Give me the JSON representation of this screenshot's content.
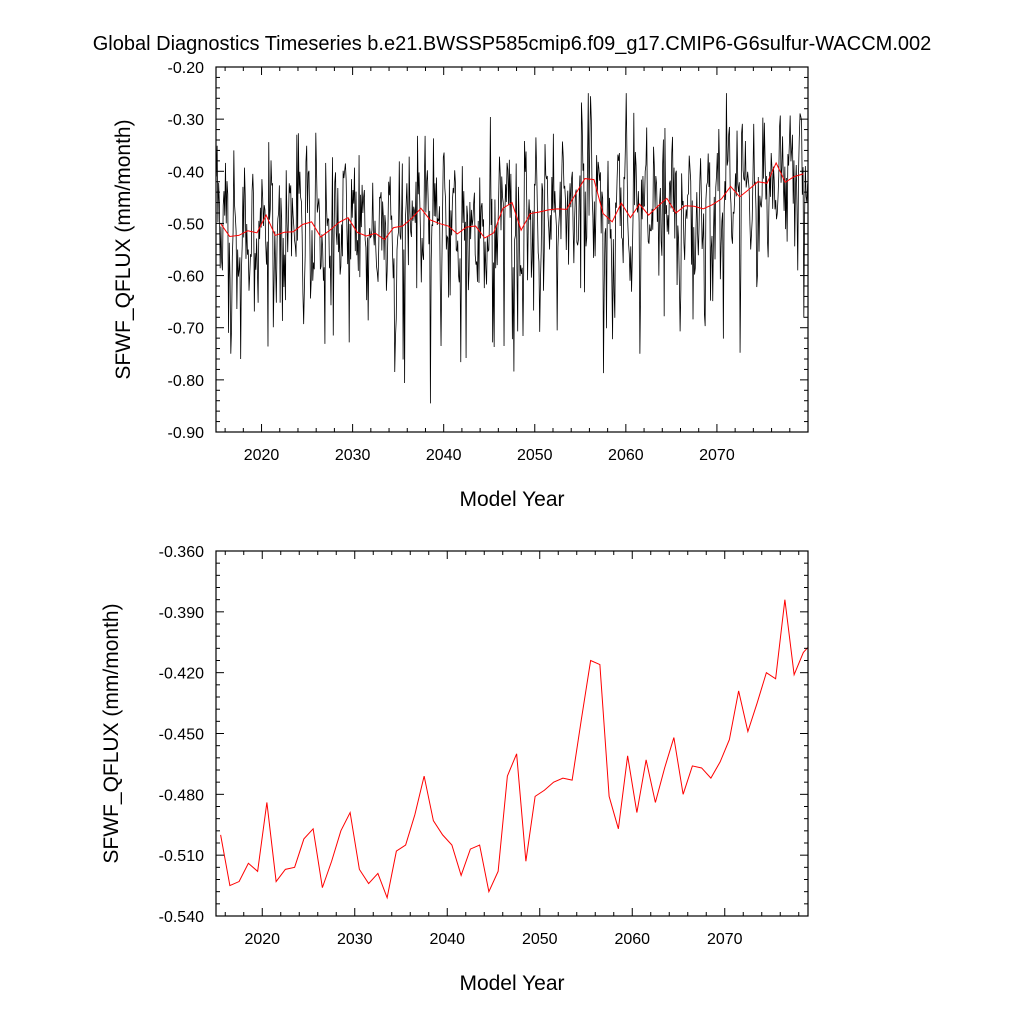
{
  "title": "Global Diagnostics Timeseries b.e21.BWSSP585cmip6.f09_g17.CMIP6-G6sulfur-WACCM.002",
  "chart_data": [
    {
      "type": "line",
      "ylabel": "SFWF_QFLUX (mm/month)",
      "xlabel": "Model Year",
      "xlim": [
        2015,
        2080
      ],
      "ylim": [
        -0.9,
        -0.2
      ],
      "x_ticks": [
        2020,
        2030,
        2040,
        2050,
        2060,
        2070
      ],
      "x_tick_labels": [
        "2020",
        "2030",
        "2040",
        "2050",
        "2060",
        "2070"
      ],
      "y_ticks": [
        -0.9,
        -0.8,
        -0.7,
        -0.6,
        -0.5,
        -0.4,
        -0.3,
        -0.2
      ],
      "y_tick_labels": [
        "-0.90",
        "-0.80",
        "-0.70",
        "-0.60",
        "-0.50",
        "-0.40",
        "-0.30",
        "-0.20"
      ],
      "grid": false,
      "series": [
        {
          "color": "#000000",
          "note": "monthly",
          "start_year": 2015,
          "values": []
        },
        {
          "color": "#ff0000",
          "note": "annual",
          "x": [
            2015,
            2016,
            2017,
            2018,
            2019,
            2020,
            2021,
            2022,
            2023,
            2024,
            2025,
            2026,
            2027,
            2028,
            2029,
            2030,
            2031,
            2032,
            2033,
            2034,
            2035,
            2036,
            2037,
            2038,
            2039,
            2040,
            2041,
            2042,
            2043,
            2044,
            2045,
            2046,
            2047,
            2048,
            2049,
            2050,
            2051,
            2052,
            2053,
            2054,
            2055,
            2056,
            2057,
            2058,
            2059,
            2060,
            2061,
            2062,
            2063,
            2064,
            2065,
            2066,
            2067,
            2068,
            2069,
            2070,
            2071,
            2072,
            2073,
            2074,
            2075,
            2076,
            2077,
            2078,
            2079
          ],
          "values": [
            -0.5,
            -0.525,
            -0.523,
            -0.514,
            -0.518,
            -0.484,
            -0.523,
            -0.517,
            -0.516,
            -0.502,
            -0.497,
            -0.526,
            -0.513,
            -0.498,
            -0.489,
            -0.517,
            -0.524,
            -0.519,
            -0.531,
            -0.508,
            -0.505,
            -0.49,
            -0.471,
            -0.493,
            -0.5,
            -0.505,
            -0.52,
            -0.507,
            -0.505,
            -0.528,
            -0.518,
            -0.471,
            -0.46,
            -0.513,
            -0.481,
            -0.478,
            -0.474,
            -0.472,
            -0.473,
            -0.443,
            -0.414,
            -0.416,
            -0.481,
            -0.497,
            -0.461,
            -0.489,
            -0.463,
            -0.484,
            -0.467,
            -0.452,
            -0.48,
            -0.466,
            -0.467,
            -0.472,
            -0.464,
            -0.453,
            -0.429,
            -0.449,
            -0.435,
            -0.42,
            -0.423,
            -0.384,
            -0.421,
            -0.41,
            -0.405
          ]
        }
      ]
    },
    {
      "type": "line",
      "ylabel": "SFWF_QFLUX (mm/month)",
      "xlabel": "Model Year",
      "xlim": [
        2015,
        2079
      ],
      "ylim": [
        -0.54,
        -0.36
      ],
      "x_ticks": [
        2020,
        2030,
        2040,
        2050,
        2060,
        2070
      ],
      "x_tick_labels": [
        "2020",
        "2030",
        "2040",
        "2050",
        "2060",
        "2070"
      ],
      "y_ticks": [
        -0.54,
        -0.51,
        -0.48,
        -0.45,
        -0.42,
        -0.39,
        -0.36
      ],
      "y_tick_labels": [
        "-0.540",
        "-0.510",
        "-0.480",
        "-0.450",
        "-0.420",
        "-0.390",
        "-0.360"
      ],
      "grid": false,
      "series": [
        {
          "color": "#ff0000",
          "note": "annual",
          "x": [
            2015,
            2016,
            2017,
            2018,
            2019,
            2020,
            2021,
            2022,
            2023,
            2024,
            2025,
            2026,
            2027,
            2028,
            2029,
            2030,
            2031,
            2032,
            2033,
            2034,
            2035,
            2036,
            2037,
            2038,
            2039,
            2040,
            2041,
            2042,
            2043,
            2044,
            2045,
            2046,
            2047,
            2048,
            2049,
            2050,
            2051,
            2052,
            2053,
            2054,
            2055,
            2056,
            2057,
            2058,
            2059,
            2060,
            2061,
            2062,
            2063,
            2064,
            2065,
            2066,
            2067,
            2068,
            2069,
            2070,
            2071,
            2072,
            2073,
            2074,
            2075,
            2076,
            2077,
            2078,
            2079
          ],
          "values": [
            -0.5,
            -0.525,
            -0.523,
            -0.514,
            -0.518,
            -0.484,
            -0.523,
            -0.517,
            -0.516,
            -0.502,
            -0.497,
            -0.526,
            -0.513,
            -0.498,
            -0.489,
            -0.517,
            -0.524,
            -0.519,
            -0.531,
            -0.508,
            -0.505,
            -0.49,
            -0.471,
            -0.493,
            -0.5,
            -0.505,
            -0.52,
            -0.507,
            -0.505,
            -0.528,
            -0.518,
            -0.471,
            -0.46,
            -0.513,
            -0.481,
            -0.478,
            -0.474,
            -0.472,
            -0.473,
            -0.443,
            -0.414,
            -0.416,
            -0.481,
            -0.497,
            -0.461,
            -0.489,
            -0.463,
            -0.484,
            -0.467,
            -0.452,
            -0.48,
            -0.466,
            -0.467,
            -0.472,
            -0.464,
            -0.453,
            -0.429,
            -0.449,
            -0.435,
            -0.42,
            -0.423,
            -0.384,
            -0.421,
            -0.41,
            -0.405
          ]
        }
      ]
    }
  ]
}
